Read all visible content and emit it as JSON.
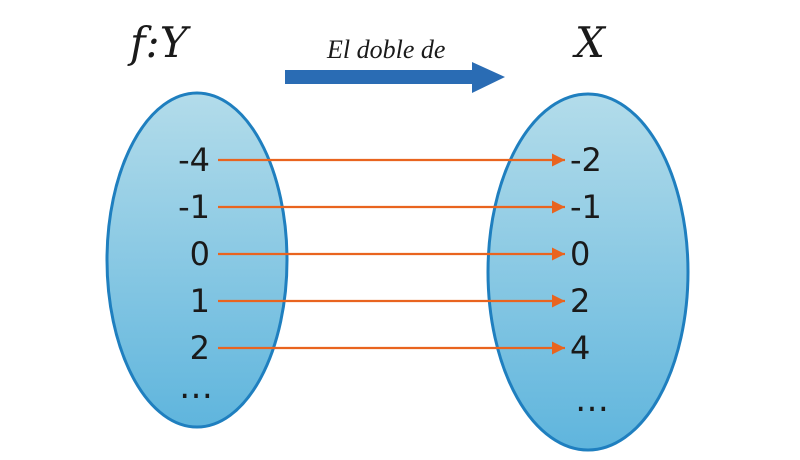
{
  "diagram": {
    "left_set_title": "f:Y",
    "right_set_title": "X",
    "arrow_label": "El doble de",
    "left_values": [
      "-4",
      "-1",
      "0",
      "1",
      "2"
    ],
    "right_values": [
      "-2",
      "-1",
      "0",
      "2",
      "4"
    ],
    "left_ellipsis": "…",
    "right_ellipsis": "…"
  },
  "colors": {
    "set_fill_top": "#b3dcea",
    "set_fill_bottom": "#5fb5dd",
    "set_stroke": "#1f7fbf",
    "main_arrow": "#2a6cb4",
    "map_arrow": "#e9641f"
  }
}
